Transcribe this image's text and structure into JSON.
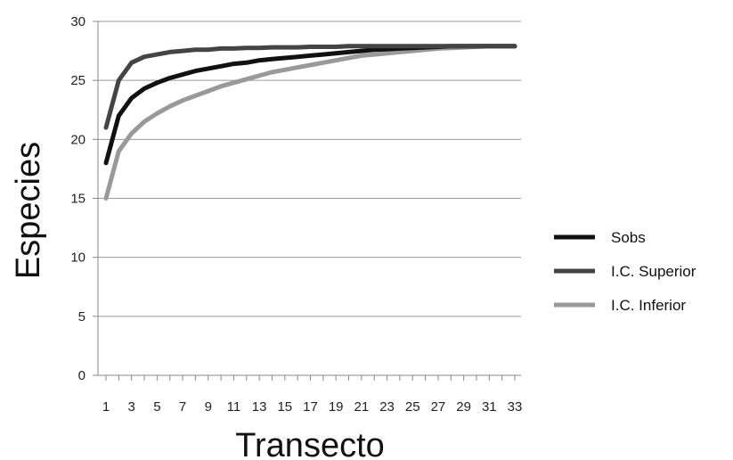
{
  "chart_data": {
    "type": "line",
    "title": "",
    "xlabel": "Transecto",
    "ylabel": "Especies",
    "x": [
      1,
      2,
      3,
      4,
      5,
      6,
      7,
      8,
      9,
      10,
      11,
      12,
      13,
      14,
      15,
      16,
      17,
      18,
      19,
      20,
      21,
      22,
      23,
      24,
      25,
      26,
      27,
      28,
      29,
      30,
      31,
      32,
      33
    ],
    "x_ticks": [
      1,
      3,
      5,
      7,
      9,
      11,
      13,
      15,
      17,
      19,
      21,
      23,
      25,
      27,
      29,
      31,
      33
    ],
    "ylim": [
      0,
      30
    ],
    "y_ticks": [
      0,
      5,
      10,
      15,
      20,
      25,
      30
    ],
    "grid": "horizontal",
    "legend_position": "right",
    "series": [
      {
        "name": "Sobs",
        "color": "#111111",
        "values": [
          18,
          22,
          23.5,
          24.3,
          24.8,
          25.2,
          25.5,
          25.8,
          26.0,
          26.2,
          26.4,
          26.5,
          26.7,
          26.8,
          26.9,
          27.0,
          27.1,
          27.2,
          27.3,
          27.4,
          27.5,
          27.6,
          27.65,
          27.7,
          27.75,
          27.8,
          27.85,
          27.9,
          27.9,
          27.9,
          27.9,
          27.9,
          27.9
        ]
      },
      {
        "name": "I.C. Superior",
        "color": "#444444",
        "values": [
          21,
          25,
          26.5,
          27.0,
          27.2,
          27.4,
          27.5,
          27.6,
          27.6,
          27.7,
          27.7,
          27.75,
          27.75,
          27.8,
          27.8,
          27.8,
          27.85,
          27.85,
          27.85,
          27.9,
          27.9,
          27.9,
          27.9,
          27.9,
          27.9,
          27.9,
          27.9,
          27.9,
          27.9,
          27.9,
          27.9,
          27.9,
          27.9
        ]
      },
      {
        "name": "I.C. Inferior",
        "color": "#999999",
        "values": [
          15,
          19,
          20.5,
          21.5,
          22.2,
          22.8,
          23.3,
          23.7,
          24.1,
          24.5,
          24.8,
          25.1,
          25.4,
          25.7,
          25.9,
          26.1,
          26.3,
          26.5,
          26.7,
          26.9,
          27.1,
          27.2,
          27.3,
          27.4,
          27.5,
          27.6,
          27.7,
          27.75,
          27.8,
          27.85,
          27.9,
          27.9,
          27.9
        ]
      }
    ]
  }
}
